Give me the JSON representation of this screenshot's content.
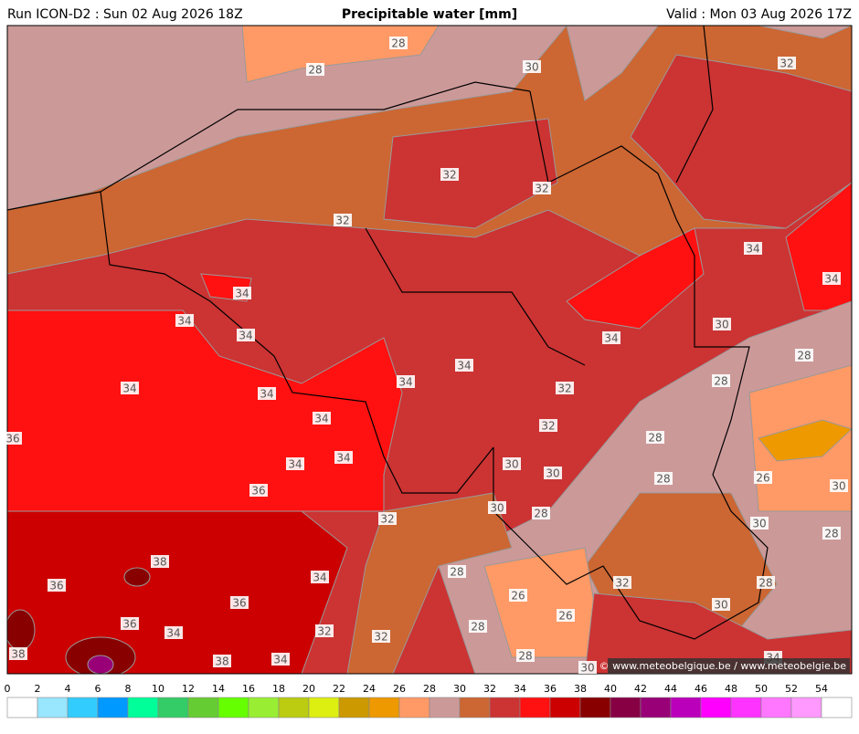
{
  "header": {
    "run": "Run ICON-D2 : Sun 02 Aug 2026 18Z",
    "title": "Precipitable water [mm]",
    "valid": "Valid : Mon 03 Aug 2026 17Z"
  },
  "map": {
    "contour_labels": [
      28,
      28,
      30,
      32,
      32,
      32,
      32,
      34,
      34,
      34,
      34,
      30,
      34,
      34,
      28,
      34,
      34,
      34,
      34,
      28,
      32,
      34,
      32,
      28,
      36,
      34,
      34,
      30,
      30,
      28,
      26,
      30,
      36,
      30,
      28,
      32,
      30,
      28,
      38,
      28,
      34,
      32,
      28,
      36,
      26,
      36,
      30,
      26,
      36,
      28,
      34,
      32,
      32,
      38,
      28,
      38,
      34,
      30,
      34
    ],
    "copyright": "© www.meteobelgique.be / www.meteobelgie.be"
  },
  "colorbar": {
    "ticks": [
      0,
      2,
      4,
      6,
      8,
      10,
      12,
      14,
      16,
      18,
      20,
      22,
      24,
      26,
      28,
      30,
      32,
      34,
      36,
      38,
      40,
      42,
      44,
      46,
      48,
      50,
      52,
      54
    ],
    "colors": [
      "#ffffff",
      "#99e6ff",
      "#33ccff",
      "#0099ff",
      "#00ff99",
      "#33cc66",
      "#66cc33",
      "#66ff00",
      "#99ee33",
      "#bbcc11",
      "#ddee11",
      "#cc9900",
      "#ee9900",
      "#ff9966",
      "#cc9999",
      "#cc6633",
      "#cc3333",
      "#ff1111",
      "#cc0000",
      "#880000",
      "#880044",
      "#990077",
      "#bb00bb",
      "#ff00ff",
      "#ff33ff",
      "#ff77ff",
      "#ff99ff",
      "#ffffff"
    ]
  }
}
